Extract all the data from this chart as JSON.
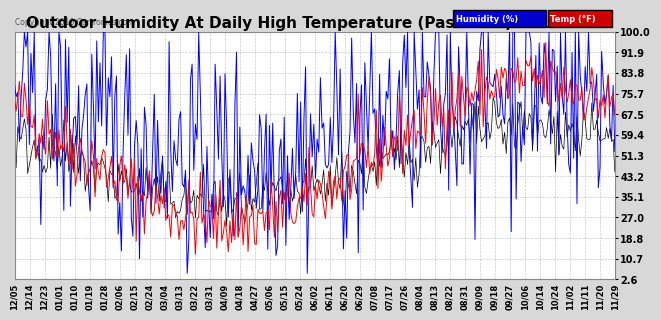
{
  "title": "Outdoor Humidity At Daily High Temperature (Past Year) 20161205",
  "copyright": "Copyright 2016 Cartronics.com",
  "yticks": [
    100.0,
    91.9,
    83.8,
    75.7,
    67.5,
    59.4,
    51.3,
    43.2,
    35.1,
    27.0,
    18.8,
    10.7,
    2.6
  ],
  "ylim": [
    2.6,
    100.0
  ],
  "x_labels": [
    "12/05",
    "12/14",
    "12/23",
    "01/01",
    "01/10",
    "01/19",
    "01/28",
    "02/06",
    "02/15",
    "02/24",
    "03/04",
    "03/13",
    "03/22",
    "03/31",
    "04/09",
    "04/18",
    "04/27",
    "05/06",
    "05/15",
    "05/24",
    "06/02",
    "06/11",
    "06/20",
    "06/29",
    "07/08",
    "07/17",
    "07/26",
    "08/04",
    "08/13",
    "08/22",
    "08/31",
    "09/09",
    "09/18",
    "09/27",
    "10/06",
    "10/14",
    "10/24",
    "11/02",
    "11/11",
    "11/20",
    "11/29"
  ],
  "plot_bg_color": "#ffffff",
  "fig_bg_color": "#d8d8d8",
  "grid_color": "#bbbbbb",
  "humidity_color": "#0000ff",
  "temp_color": "#ff0000",
  "black_color": "#000000",
  "title_fontsize": 11,
  "legend_humidity_bg": "#0000cc",
  "legend_temp_bg": "#cc0000",
  "n_points": 366,
  "seed": 42
}
